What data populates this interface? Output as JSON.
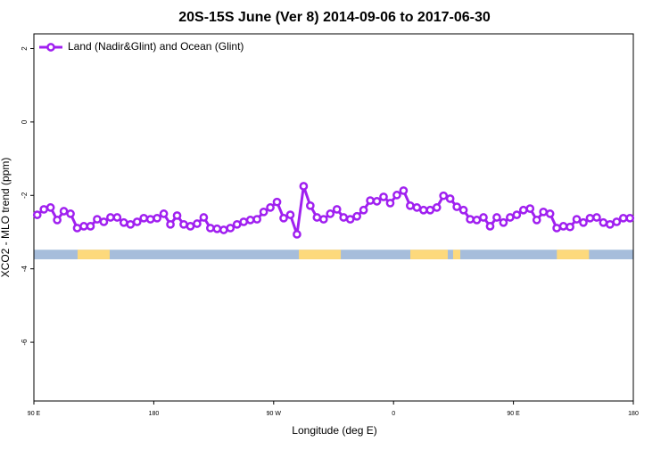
{
  "chart_data": {
    "type": "line",
    "title": "20S-15S June (Ver 8)   2014-09-06 to 2017-06-30",
    "xlabel": "Longitude (deg E)",
    "ylabel": "XCO2 - MLO trend (ppm)",
    "xlim": [
      90,
      540
    ],
    "ylim": [
      -7.6,
      2.4
    ],
    "xticks": [
      {
        "value": 90,
        "label": "90 E"
      },
      {
        "value": 180,
        "label": "180"
      },
      {
        "value": 270,
        "label": "90 W"
      },
      {
        "value": 360,
        "label": "0"
      },
      {
        "value": 450,
        "label": "90 E"
      },
      {
        "value": 540,
        "label": "180"
      }
    ],
    "yticks": [
      2,
      0,
      -2,
      -4,
      -6
    ],
    "legend": "top-left",
    "series": [
      {
        "name": "Land (Nadir&Glint) and Ocean (Glint)",
        "color": "#a020f0",
        "x": [
          92.5,
          97.5,
          102.5,
          107.5,
          112.5,
          117.5,
          122.5,
          127.5,
          132.5,
          137.5,
          142.5,
          147.5,
          152.5,
          157.5,
          162.5,
          167.5,
          172.5,
          177.5,
          182.5,
          187.5,
          192.5,
          197.5,
          202.5,
          207.5,
          212.5,
          217.5,
          222.5,
          227.5,
          232.5,
          237.5,
          242.5,
          247.5,
          252.5,
          257.5,
          262.5,
          267.5,
          272.5,
          277.5,
          282.5,
          287.5,
          292.5,
          297.5,
          302.5,
          307.5,
          312.5,
          317.5,
          322.5,
          327.5,
          332.5,
          337.5,
          342.5,
          347.5,
          352.5,
          357.5,
          362.5,
          367.5,
          372.5,
          377.5,
          382.5,
          387.5,
          392.5,
          397.5,
          402.5,
          407.5,
          412.5,
          417.5,
          422.5,
          427.5,
          432.5,
          437.5,
          442.5,
          447.5,
          452.5,
          457.5,
          462.5,
          467.5,
          472.5,
          477.5,
          482.5,
          487.5,
          492.5,
          497.5,
          502.5,
          507.5,
          512.5,
          517.5,
          522.5,
          527.5,
          532.5,
          537.5
        ],
        "values": [
          -2.53,
          -2.38,
          -2.33,
          -2.67,
          -2.43,
          -2.5,
          -2.89,
          -2.84,
          -2.84,
          -2.65,
          -2.72,
          -2.6,
          -2.6,
          -2.74,
          -2.79,
          -2.72,
          -2.62,
          -2.65,
          -2.62,
          -2.5,
          -2.79,
          -2.55,
          -2.79,
          -2.84,
          -2.77,
          -2.6,
          -2.89,
          -2.91,
          -2.94,
          -2.89,
          -2.79,
          -2.72,
          -2.67,
          -2.65,
          -2.45,
          -2.33,
          -2.18,
          -2.62,
          -2.53,
          -3.06,
          -1.75,
          -2.28,
          -2.6,
          -2.65,
          -2.5,
          -2.38,
          -2.6,
          -2.65,
          -2.57,
          -2.4,
          -2.14,
          -2.16,
          -2.04,
          -2.21,
          -1.99,
          -1.87,
          -2.28,
          -2.33,
          -2.4,
          -2.4,
          -2.33,
          -2.01,
          -2.09,
          -2.31,
          -2.4,
          -2.65,
          -2.67,
          -2.6,
          -2.84,
          -2.6,
          -2.74,
          -2.6,
          -2.53,
          -2.4,
          -2.36,
          -2.67,
          -2.45,
          -2.5,
          -2.89,
          -2.84,
          -2.86,
          -2.65,
          -2.74,
          -2.62,
          -2.6,
          -2.74,
          -2.79,
          -2.72,
          -2.62,
          -2.62
        ]
      }
    ],
    "mask": {
      "y": [
        -3.48,
        -3.74
      ],
      "color": "#a6bddb",
      "land_color": "#fdd97c",
      "land": [
        [
          122.8,
          146.9
        ],
        [
          288.9,
          320.4
        ],
        [
          372.6,
          400.7
        ],
        [
          404.7,
          410.1
        ],
        [
          482.6,
          506.7
        ]
      ]
    }
  }
}
